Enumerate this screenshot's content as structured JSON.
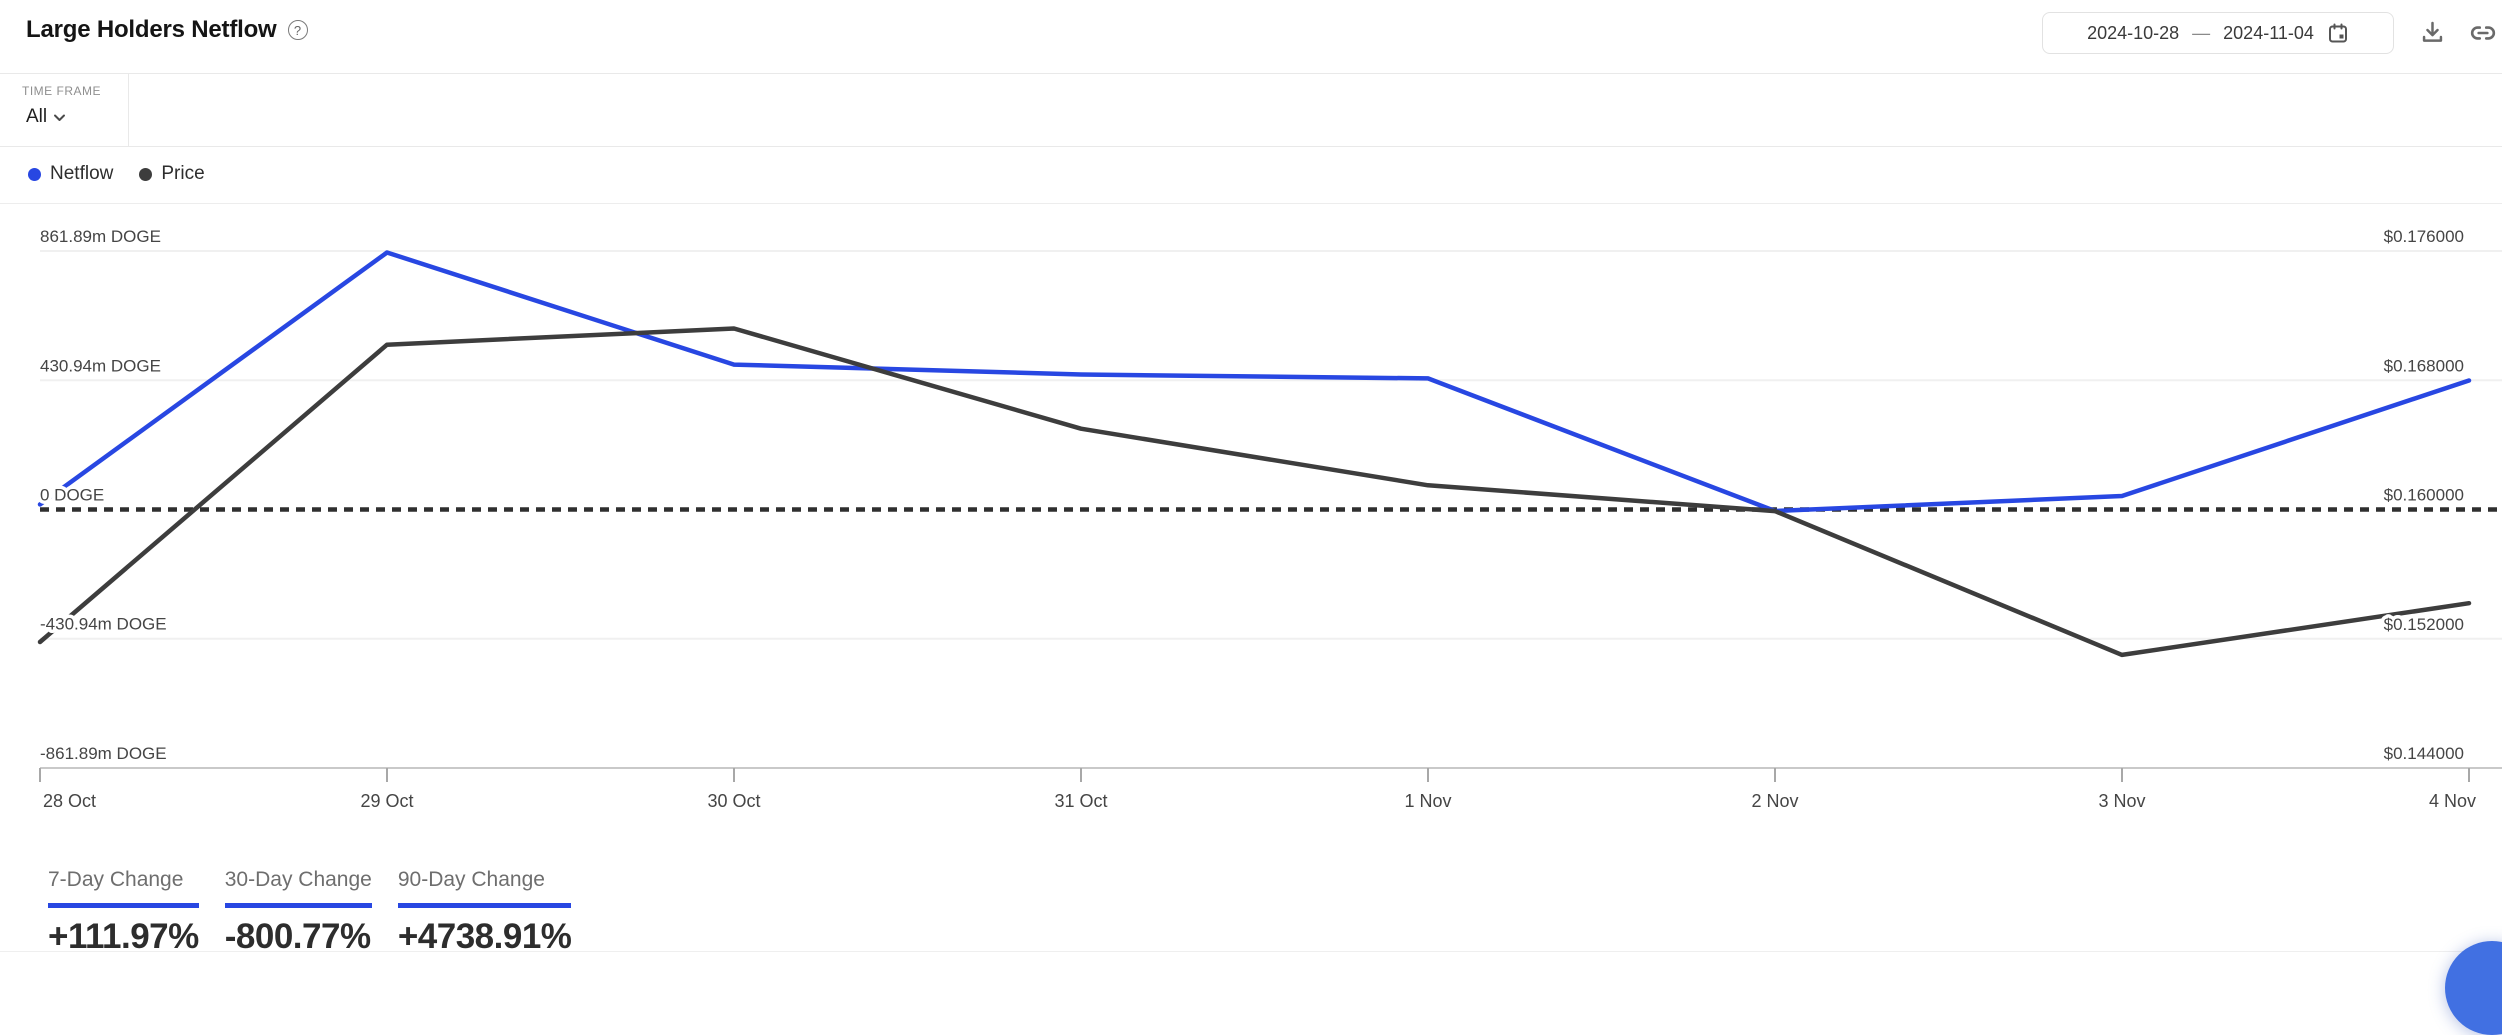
{
  "header": {
    "title": "Large Holders Netflow",
    "help_icon": "?",
    "date_from": "2024-10-28",
    "date_separator": "—",
    "date_to": "2024-11-04"
  },
  "controls": {
    "time_frame_label": "TIME FRAME",
    "time_frame_value": "All"
  },
  "legend": [
    {
      "label": "Netflow",
      "color": "#2847e2"
    },
    {
      "label": "Price",
      "color": "#3d3d3d"
    }
  ],
  "stats": [
    {
      "label": "7-Day Change",
      "value": "+111.97%"
    },
    {
      "label": "30-Day Change",
      "value": "-800.77%"
    },
    {
      "label": "90-Day Change",
      "value": "+4738.91%"
    }
  ],
  "colors": {
    "accent": "#2847e2",
    "price": "#3d3d3d",
    "grid": "#f0f0f0",
    "axis": "#c9c9c9",
    "tick": "#a8a8a8",
    "dotted": "#2f2f2f",
    "label": "#454545",
    "chat_button": "#4170e2"
  },
  "chart_data": {
    "type": "line",
    "title": "Large Holders Netflow",
    "categories": [
      "28 Oct",
      "29 Oct",
      "30 Oct",
      "31 Oct",
      "1 Nov",
      "2 Nov",
      "3 Nov",
      "4 Nov"
    ],
    "series": [
      {
        "name": "Netflow",
        "axis": "left",
        "unit": "m DOGE",
        "color": "#2847e2",
        "values": [
          17,
          857,
          483,
          450,
          437,
          -5,
          45,
          430
        ]
      },
      {
        "name": "Price",
        "axis": "right",
        "unit": "USD",
        "color": "#3d3d3d",
        "values": [
          0.1518,
          0.1702,
          0.1712,
          0.165,
          0.1615,
          0.1599,
          0.151,
          0.1542
        ]
      }
    ],
    "y_axis_left": {
      "min": -861.89,
      "max": 861.89,
      "ticks": [
        {
          "label": "861.89m DOGE",
          "value": 861.89
        },
        {
          "label": "430.94m DOGE",
          "value": 430.94
        },
        {
          "label": "0 DOGE",
          "value": 0
        },
        {
          "label": "-430.94m DOGE",
          "value": -430.94
        },
        {
          "label": "-861.89m DOGE",
          "value": -861.89
        }
      ]
    },
    "y_axis_right": {
      "min": 0.144,
      "max": 0.176,
      "ticks": [
        {
          "label": "$0.176000",
          "value": 0.176
        },
        {
          "label": "$0.168000",
          "value": 0.168
        },
        {
          "label": "$0.160000",
          "value": 0.16
        },
        {
          "label": "$0.152000",
          "value": 0.152
        },
        {
          "label": "$0.144000",
          "value": 0.144
        }
      ]
    },
    "zero_line": {
      "value": 0,
      "style": "dotted"
    },
    "grid": true,
    "legend_position": "top-left"
  }
}
